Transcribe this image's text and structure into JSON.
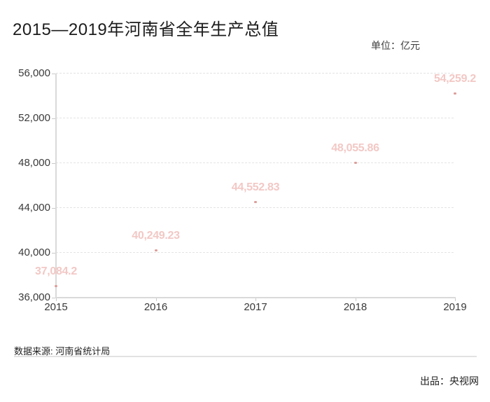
{
  "title": "2015—2019年河南省全年生产总值",
  "unit_label": "单位：亿元",
  "footer": {
    "source": "数据来源: 河南省统计局",
    "producer": "出品：央视网"
  },
  "chart_data": {
    "type": "line",
    "title": "2015—2019年河南省全年生产总值",
    "ylabel": "亿元",
    "categories": [
      "2015",
      "2016",
      "2017",
      "2018",
      "2019"
    ],
    "values": [
      37084.2,
      40249.23,
      44552.83,
      48055.86,
      54259.2
    ],
    "value_labels": [
      "37,084.2",
      "40,249.23",
      "44,552.83",
      "48,055.86",
      "54,259.2"
    ],
    "ylim": [
      36000,
      56000
    ],
    "ytick_interval": 4000,
    "ytick_labels": [
      "56,000",
      "52,000",
      "48,000",
      "44,000",
      "40,000",
      "36,000"
    ],
    "grid": "horizontal-dashed",
    "legend": "none",
    "colors": {
      "value_label": "#f2c8c5",
      "point": "#db9d99",
      "grid": "#e3e3e3",
      "axis": "#d9d9d9",
      "tick": "#c9c9c9",
      "axis_text": "#3a3a3a"
    }
  }
}
